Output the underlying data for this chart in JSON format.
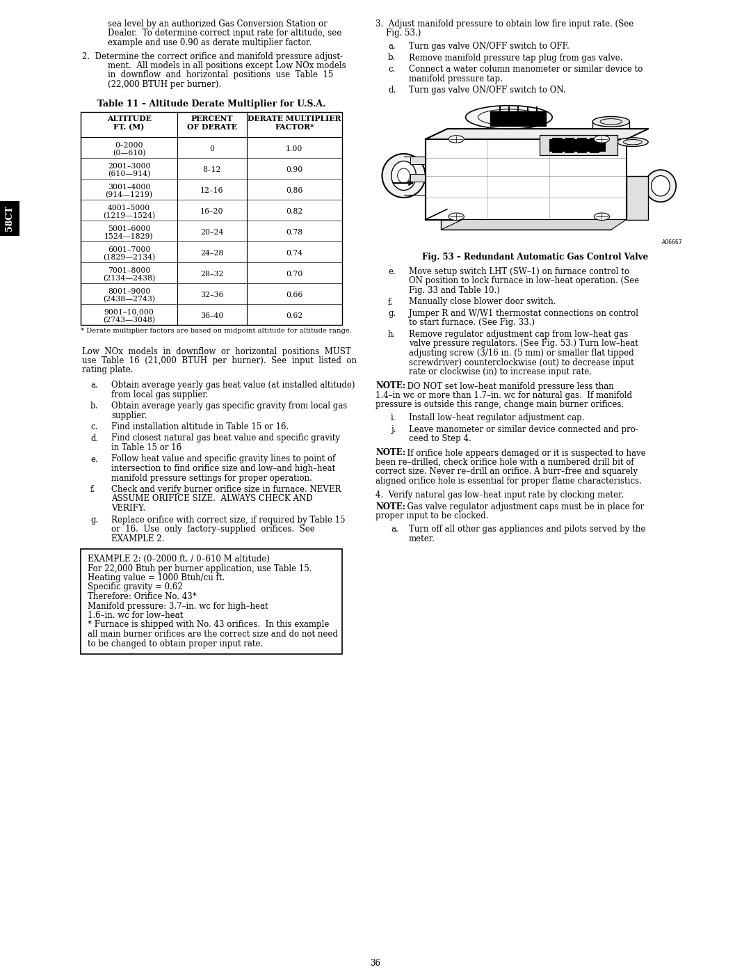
{
  "page_bg": "#ffffff",
  "page_number": "36",
  "sidebar_label": "58CT",
  "top_left_text": [
    "sea level by an authorized Gas Conversion Station or",
    "Dealer.  To determine correct input rate for altitude, see",
    "example and use 0.90 as derate multiplier factor."
  ],
  "item2_lines": [
    "2.  Determine the correct orifice and manifold pressure adjust-",
    "ment.  All models in all positions except Low NOx models",
    "in  downflow  and  horizontal  positions  use  Table  15",
    "(22,000 BTUH per burner)."
  ],
  "table_title": "Table 11 – Altitude Derate Multiplier for U.S.A.",
  "table_headers": [
    "ALTITUDE\nFT. (M)",
    "PERCENT\nOF DERATE",
    "DERATE MULTIPLIER\nFACTOR*"
  ],
  "table_rows": [
    [
      "0–2000\n(0—610)",
      "0",
      "1.00"
    ],
    [
      "2001–3000\n(610—914)",
      "8–12",
      "0.90"
    ],
    [
      "3001–4000\n(914—1219)",
      "12–16",
      "0.86"
    ],
    [
      "4001–5000\n(1219—1524)",
      "16–20",
      "0.82"
    ],
    [
      "5001–6000\n1524—1829)",
      "20–24",
      "0.78"
    ],
    [
      "6001–7000\n(1829—2134)",
      "24–28",
      "0.74"
    ],
    [
      "7001–8000\n(2134—2438)",
      "28–32",
      "0.70"
    ],
    [
      "8001–9000\n(2438—2743)",
      "32–36",
      "0.66"
    ],
    [
      "9001–10,000\n(2743—3048)",
      "36–40",
      "0.62"
    ]
  ],
  "table_footnote": "* Derate multiplier factors are based on midpoint altitude for altitude range.",
  "low_nox_lines": [
    "Low  NOx  models  in  downflow  or  horizontal  positions  MUST",
    "use  Table  16  (21,000  BTUH  per  burner).  See  input  listed  on",
    "rating plate."
  ],
  "list_items_left": [
    [
      "a.",
      "Obtain average yearly gas heat value (at installed altitude)",
      "from local gas supplier."
    ],
    [
      "b.",
      "Obtain average yearly gas specific gravity from local gas",
      "supplier."
    ],
    [
      "c.",
      "Find installation altitude in Table 15 or 16."
    ],
    [
      "d.",
      "Find closest natural gas heat value and specific gravity",
      "in Table 15 or 16"
    ],
    [
      "e.",
      "Follow heat value and specific gravity lines to point of",
      "intersection to find orifice size and low–and high–heat",
      "manifold pressure settings for proper operation."
    ],
    [
      "f.",
      "Check and verify burner orifice size in furnace. NEVER",
      "ASSUME ORIFICE SIZE.  ALWAYS CHECK AND",
      "VERIFY."
    ],
    [
      "g.",
      "Replace orifice with correct size, if required by Table 15",
      "or  16.  Use  only  factory–supplied  orifices.  See",
      "EXAMPLE 2."
    ]
  ],
  "example_title": "EXAMPLE 2: (0–2000 ft. / 0–610 M altitude)",
  "example_lines": [
    "For 22,000 Btuh per burner application, use Table 15.",
    "Heating value = 1000 Btuh/cu ft.",
    "Specific gravity = 0.62",
    "Therefore: Orifice No. 43*",
    "Manifold pressure: 3.7–in. wc for high–heat",
    "1.6–in. wc for low–heat",
    "* Furnace is shipped with No. 43 orifices.  In this example",
    "all main burner orifices are the correct size and do not need",
    "to be changed to obtain proper input rate."
  ],
  "right_item3_lines": [
    "3.  Adjust manifold pressure to obtain low fire input rate. (See",
    "    Fig. 53.)"
  ],
  "right_item3_subs": [
    [
      "a.",
      "Turn gas valve ON/OFF switch to OFF."
    ],
    [
      "b.",
      "Remove manifold pressure tap plug from gas valve."
    ],
    [
      "c.",
      "Connect a water column manometer or similar device to",
      "manifold pressure tap."
    ],
    [
      "d.",
      "Turn gas valve ON/OFF switch to ON."
    ]
  ],
  "fig_caption": "Fig. 53 – Redundant Automatic Gas Control Valve",
  "right_item3e_subs": [
    [
      "e.",
      "Move setup switch LHT (SW–1) on furnace control to",
      "ON position to lock furnace in low–heat operation. (See",
      "Fig. 33 and Table 10.)"
    ],
    [
      "f.",
      "Manually close blower door switch."
    ],
    [
      "g.",
      "Jumper R and W/W1 thermostat connections on control",
      "to start furnace. (See Fig. 33.)"
    ],
    [
      "h.",
      "Remove regulator adjustment cap from low–heat gas",
      "valve pressure regulators. (See Fig. 53.) Turn low–heat",
      "adjusting screw (3/16 in. (5 mm) or smaller flat tipped",
      "screwdriver) counterclockwise (out) to decrease input",
      "rate or clockwise (in) to increase input rate."
    ]
  ],
  "note1_bold": "NOTE:",
  "note1_lines": [
    "  DO NOT set low–heat manifold pressure less than",
    "1.4–in wc or more than 1.7–in. wc for natural gas.  If manifold",
    "pressure is outside this range, change main burner orifices."
  ],
  "right_ij_subs": [
    [
      "i.",
      "Install low–heat regulator adjustment cap."
    ],
    [
      "j.",
      "Leave manometer or similar device connected and pro-",
      "ceed to Step 4."
    ]
  ],
  "note2_bold": "NOTE:",
  "note2_lines": [
    "  If orifice hole appears damaged or it is suspected to have",
    "been re–drilled, check orifice hole with a numbered drill bit of",
    "correct size. Never re–drill an orifice. A burr–free and squarely",
    "aligned orifice hole is essential for proper flame characteristics."
  ],
  "item4_line": "4.  Verify natural gas low–heat input rate by clocking meter.",
  "note3_bold": "NOTE:",
  "note3_lines": [
    "  Gas valve regulator adjustment caps must be in place for",
    "proper input to be clocked."
  ],
  "item4a": [
    "a.",
    "Turn off all other gas appliances and pilots served by the",
    "meter."
  ]
}
